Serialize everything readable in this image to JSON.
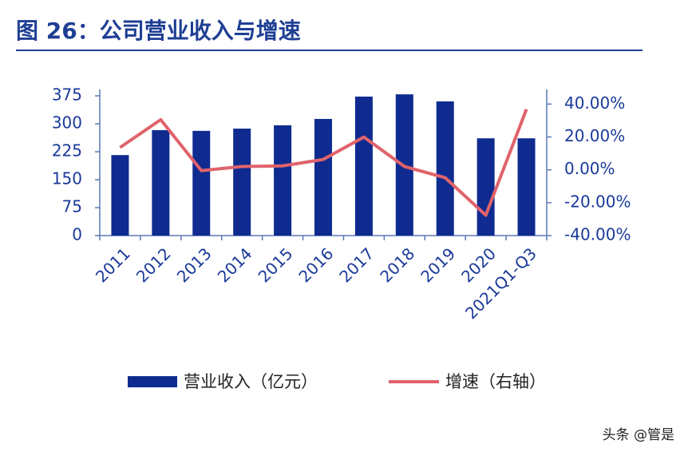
{
  "chart_data": {
    "type": "bar-line",
    "title": "图 26：公司营业收入与增速",
    "categories": [
      "2011",
      "2012",
      "2013",
      "2014",
      "2015",
      "2016",
      "2017",
      "2018",
      "2019",
      "2020",
      "2021Q1-Q3"
    ],
    "series": [
      {
        "name": "营业收入（亿元）",
        "type": "bar",
        "color": "#0f2b8f",
        "values": [
          216,
          283,
          281,
          287,
          296,
          313,
          373,
          379,
          360,
          261,
          261
        ]
      },
      {
        "name": "增速（右轴）",
        "type": "line",
        "axis": "y2",
        "color": "#e0636b",
        "values": [
          13.6,
          30.5,
          -0.5,
          2,
          2.4,
          6.3,
          19.9,
          2,
          -4.8,
          -27.6,
          36.8
        ]
      }
    ],
    "ylim": [
      0,
      375
    ],
    "yticks": [
      0,
      75,
      150,
      225,
      300,
      375
    ],
    "y2lim": [
      -40,
      45
    ],
    "y2ticks": [
      {
        "value": -40,
        "label": "-40.00%"
      },
      {
        "value": -20,
        "label": "-20.00%"
      },
      {
        "value": 0,
        "label": "0.00%"
      },
      {
        "value": 20,
        "label": "20.00%"
      },
      {
        "value": 40,
        "label": "40.00%"
      }
    ],
    "watermark": "头条 @管是"
  }
}
